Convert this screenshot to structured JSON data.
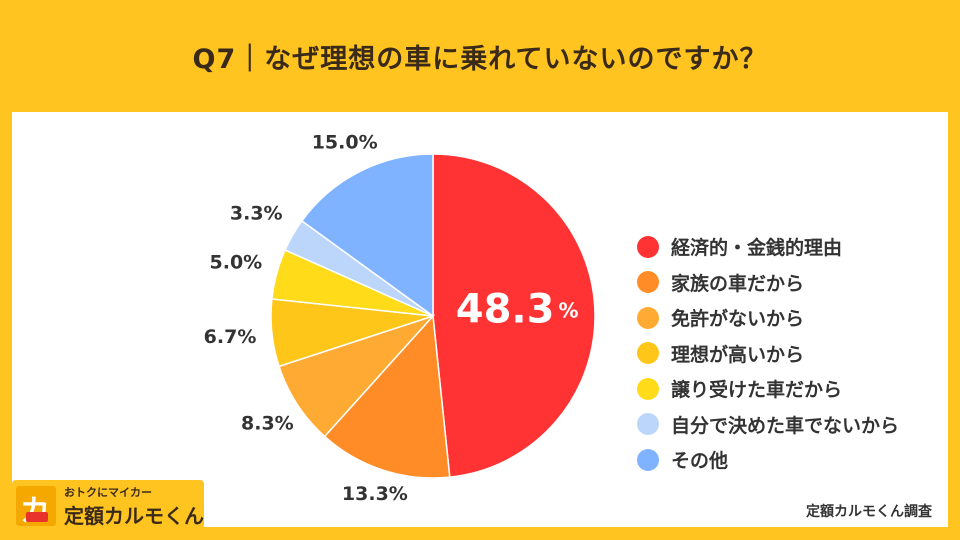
{
  "title": "Q7｜なぜ理想の車に乗れていないのですか？",
  "source": "定額カルモくん調査",
  "logo": {
    "glyph": "カ",
    "tagline": "おトクにマイカー",
    "name": "定額カルモくん"
  },
  "chart_data": {
    "type": "pie",
    "title": "Q7｜なぜ理想の車に乗れていないのですか？",
    "start_angle_deg": 0,
    "direction": "clockwise",
    "legend_position": "right",
    "slices": [
      {
        "label": "経済的・金銭的理由",
        "value": 48.3,
        "value_label": "48.3",
        "unit": "%",
        "color": "#FF3333"
      },
      {
        "label": "家族の車だから",
        "value": 13.3,
        "value_label": "13.3%",
        "color": "#FF8C26"
      },
      {
        "label": "免許がないから",
        "value": 8.3,
        "value_label": "8.3%",
        "color": "#FFAA33"
      },
      {
        "label": "理想が高いから",
        "value": 6.7,
        "value_label": "6.7%",
        "color": "#FFC61A"
      },
      {
        "label": "譲り受けた車だから",
        "value": 5.0,
        "value_label": "5.0%",
        "color": "#FFDB1A"
      },
      {
        "label": "自分で決めた車でないから",
        "value": 3.3,
        "value_label": "3.3%",
        "color": "#BBD6FA"
      },
      {
        "label": "その他",
        "value": 15.0,
        "value_label": "15.0%",
        "color": "#80B3FF"
      }
    ]
  }
}
